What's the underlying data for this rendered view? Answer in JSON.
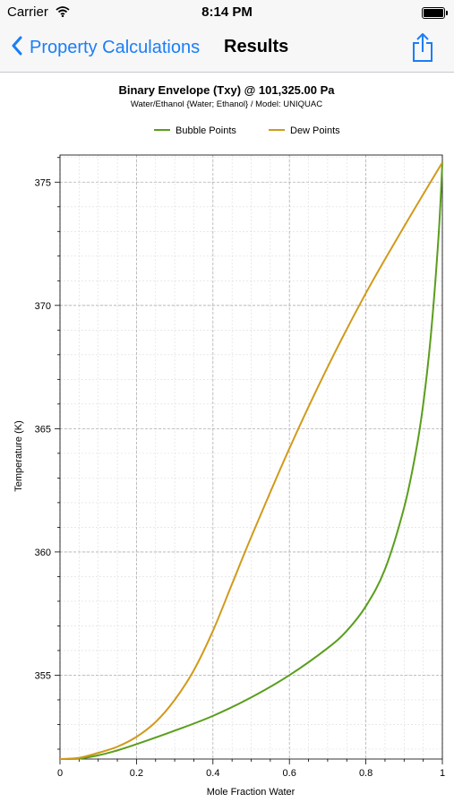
{
  "status_bar": {
    "carrier": "Carrier",
    "time": "8:14 PM"
  },
  "nav": {
    "back_label": "Property Calculations",
    "title": "Results"
  },
  "icons": {
    "back": "chevron-left-icon",
    "share": "share-icon",
    "wifi": "wifi-icon",
    "battery": "battery-icon"
  },
  "colors": {
    "accent": "#1a7ef7",
    "bubble": "#5a9e1c",
    "dew": "#d19a1a"
  },
  "chart_data": {
    "type": "line",
    "title": "Binary Envelope (Txy) @ 101,325.00 Pa",
    "subtitle": "Water/Ethanol {Water; Ethanol} / Model: UNIQUAC",
    "xlabel": "Mole Fraction Water",
    "ylabel": "Temperature (K)",
    "xlim": [
      0,
      1
    ],
    "ylim": [
      351.6,
      376.1
    ],
    "xticks": [
      "0",
      "0.2",
      "0.4",
      "0.6",
      "0.8",
      "1"
    ],
    "yticks": [
      "355",
      "360",
      "365",
      "370",
      "375"
    ],
    "grid": true,
    "legend_position": "top",
    "series": [
      {
        "name": "Bubble Points",
        "x": [
          0,
          0.05,
          0.1,
          0.15,
          0.2,
          0.3,
          0.4,
          0.5,
          0.6,
          0.7,
          0.75,
          0.8,
          0.85,
          0.9,
          0.93,
          0.95,
          0.97,
          0.99,
          1.0
        ],
        "y": [
          351.6,
          351.62,
          351.75,
          351.95,
          352.2,
          352.75,
          353.35,
          354.1,
          355.0,
          356.1,
          356.8,
          357.8,
          359.3,
          361.8,
          364.0,
          366.0,
          368.8,
          372.8,
          375.8
        ]
      },
      {
        "name": "Dew Points",
        "x": [
          0,
          0.05,
          0.1,
          0.15,
          0.2,
          0.25,
          0.3,
          0.35,
          0.4,
          0.45,
          0.5,
          0.6,
          0.7,
          0.8,
          0.9,
          1.0
        ],
        "y": [
          351.6,
          351.65,
          351.85,
          352.1,
          352.5,
          353.1,
          354.0,
          355.2,
          356.8,
          358.7,
          360.6,
          364.2,
          367.5,
          370.5,
          373.2,
          375.8
        ]
      }
    ]
  }
}
